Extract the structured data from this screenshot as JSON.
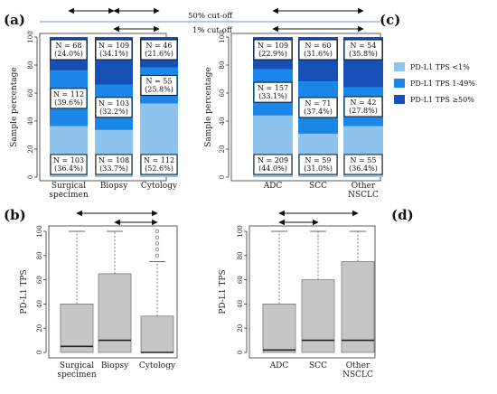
{
  "panel_labels": {
    "a": "(a)",
    "b": "(b)",
    "c": "(c)",
    "d": "(d)"
  },
  "cutoffs": {
    "cut50": "50% cut-off",
    "cut1": "1% cut-off"
  },
  "legend": [
    {
      "label": "PD-L1 TPS <1%",
      "color": "#8fc4ee"
    },
    {
      "label": "PD-L1 TPS 1-49%",
      "color": "#1a86e8"
    },
    {
      "label": "PD-L1 TPS ≥50%",
      "color": "#1650b6"
    }
  ],
  "chart_data": [
    {
      "panel": "a",
      "type": "bar",
      "stacked": true,
      "ylabel": "Sample percentage",
      "ylim": [
        0,
        100
      ],
      "yticks": [
        0,
        20,
        40,
        60,
        80,
        100
      ],
      "categories": [
        "Surgical\nspecimen",
        "Biopsy",
        "Cytology"
      ],
      "series": [
        {
          "name": "PD-L1 TPS <1%",
          "values": [
            36.4,
            33.7,
            52.6
          ],
          "labels": [
            "N = 103\n(36.4%)",
            "N = 108\n(33.7%)",
            "N = 112\n(52.6%)"
          ]
        },
        {
          "name": "PD-L1 TPS 1-49%",
          "values": [
            39.6,
            32.2,
            25.8
          ],
          "labels": [
            "N = 112\n(39.6%)",
            "N = 103\n(32.2%)",
            "N = 55\n(25.8%)"
          ]
        },
        {
          "name": "PD-L1 TPS ≥50%",
          "values": [
            24.0,
            34.1,
            21.6
          ],
          "labels": [
            "N = 68\n(24.0%)",
            "N = 109\n(34.1%)",
            "N = 46\n(21.6%)"
          ]
        }
      ]
    },
    {
      "panel": "c",
      "type": "bar",
      "stacked": true,
      "ylabel": "Sample percentage",
      "ylim": [
        0,
        100
      ],
      "yticks": [
        0,
        20,
        40,
        60,
        80,
        100
      ],
      "categories": [
        "ADC",
        "SCC",
        "Other\nNSCLC"
      ],
      "series": [
        {
          "name": "PD-L1 TPS <1%",
          "values": [
            44.0,
            31.0,
            36.4
          ],
          "labels": [
            "N = 209\n(44.0%)",
            "N = 59\n(31.0%)",
            "N = 55\n(36.4%)"
          ]
        },
        {
          "name": "PD-L1 TPS 1-49%",
          "values": [
            33.1,
            37.4,
            27.8
          ],
          "labels": [
            "N = 157\n(33.1%)",
            "N = 71\n(37.4%)",
            "N = 42\n(27.8%)"
          ]
        },
        {
          "name": "PD-L1 TPS ≥50%",
          "values": [
            22.9,
            31.6,
            35.8
          ],
          "labels": [
            "N = 109\n(22.9%)",
            "N = 60\n(31.6%)",
            "N = 54\n(35.8%)"
          ]
        }
      ]
    },
    {
      "panel": "b",
      "type": "box",
      "ylabel": "PD-L1 TPS",
      "ylim": [
        0,
        100
      ],
      "yticks": [
        0,
        20,
        40,
        60,
        80,
        100
      ],
      "categories": [
        "Surgical\nspecimen",
        "Biopsy",
        "Cytology"
      ],
      "boxes": [
        {
          "min": 0,
          "q1": 0,
          "median": 5,
          "q3": 40,
          "max": 100,
          "outliers": []
        },
        {
          "min": 0,
          "q1": 0,
          "median": 10,
          "q3": 65,
          "max": 100,
          "outliers": []
        },
        {
          "min": 0,
          "q1": 0,
          "median": 0,
          "q3": 30,
          "max": 75,
          "outliers": [
            80,
            85,
            90,
            95,
            100
          ]
        }
      ]
    },
    {
      "panel": "d",
      "type": "box",
      "ylabel": "PD-L1 TPS",
      "ylim": [
        0,
        100
      ],
      "yticks": [
        0,
        20,
        40,
        60,
        80,
        100
      ],
      "categories": [
        "ADC",
        "SCC",
        "Other\nNSCLC"
      ],
      "boxes": [
        {
          "min": 0,
          "q1": 0,
          "median": 2,
          "q3": 40,
          "max": 100,
          "outliers": []
        },
        {
          "min": 0,
          "q1": 0,
          "median": 10,
          "q3": 60,
          "max": 100,
          "outliers": []
        },
        {
          "min": 0,
          "q1": 0,
          "median": 10,
          "q3": 75,
          "max": 100,
          "outliers": []
        }
      ]
    }
  ]
}
